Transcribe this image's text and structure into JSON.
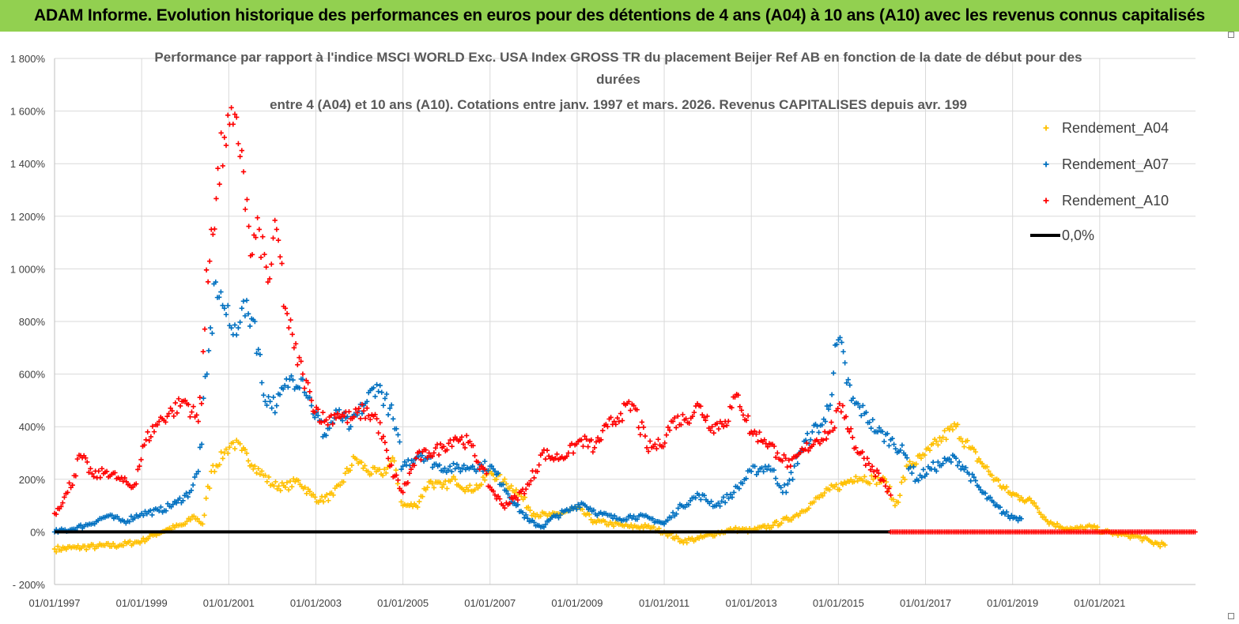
{
  "banner": {
    "text": "ADAM Informe. Evolution historique des performances en euros pour des détentions de 4 ans (A04) à 10 ans (A10) avec les revenus connus capitalisés"
  },
  "chart_data": {
    "type": "scatter",
    "title_lines": [
      "Performance par rapport à l'indice MSCI WORLD Exc. USA Index GROSS TR  du placement Beijer Ref AB en fonction de la date de début pour des",
      "durées",
      "entre 4 (A04) et 10 ans (A10). Cotations entre janv. 1997 et mars. 2026. Revenus CAPITALISES depuis avr. 199"
    ],
    "xlabel": "",
    "ylabel": "",
    "xlim": [
      1997.0,
      2023.2
    ],
    "ylim": [
      -200,
      1800
    ],
    "y_ticks": [
      -200,
      0,
      200,
      400,
      600,
      800,
      1000,
      1200,
      1400,
      1600,
      1800
    ],
    "y_tick_labels": [
      "- 200%",
      "0%",
      "200%",
      "400%",
      "600%",
      "800%",
      "1 000%",
      "1 200%",
      "1 400%",
      "1 600%",
      "1 800%"
    ],
    "x_ticks": [
      1997,
      1999,
      2001,
      2003,
      2005,
      2007,
      2009,
      2011,
      2013,
      2015,
      2017,
      2019,
      2021
    ],
    "x_tick_labels": [
      "01/01/1997",
      "01/01/1999",
      "01/01/2001",
      "01/01/2003",
      "01/01/2005",
      "01/01/2007",
      "01/01/2009",
      "01/01/2011",
      "01/01/2013",
      "01/01/2015",
      "01/01/2017",
      "01/01/2019",
      "01/01/2021"
    ],
    "grid": true,
    "legend_position": "top-right",
    "series": [
      {
        "name": "Rendement_A04",
        "color": "#ffc000",
        "marker": "+",
        "x": [
          1997.0,
          1997.5,
          1998.0,
          1998.5,
          1999.0,
          1999.3,
          1999.6,
          2000.0,
          2000.2,
          2000.4,
          2000.6,
          2000.9,
          2001.1,
          2001.3,
          2001.6,
          2002.0,
          2002.3,
          2002.6,
          2002.9,
          2003.1,
          2003.4,
          2003.6,
          2003.9,
          2004.2,
          2004.5,
          2004.8,
          2005.0,
          2005.3,
          2005.6,
          2005.9,
          2006.2,
          2006.5,
          2006.8,
          2007.0,
          2007.3,
          2007.6,
          2008.0,
          2008.4,
          2008.8,
          2009.0,
          2009.4,
          2009.8,
          2010.2,
          2010.6,
          2011.0,
          2011.4,
          2011.8,
          2012.2,
          2012.6,
          2013.0,
          2013.5,
          2014.0,
          2014.4,
          2014.8,
          2015.1,
          2015.4,
          2015.8,
          2016.1,
          2016.3,
          2016.6,
          2016.9,
          2017.1,
          2017.4,
          2017.7,
          2018.0,
          2018.3,
          2018.6,
          2018.9,
          2019.2,
          2019.5,
          2019.8,
          2020.1,
          2020.4,
          2020.8,
          2021.1,
          2021.5,
          2021.9,
          2022.2,
          2022.5
        ],
        "y": [
          -65,
          -60,
          -55,
          -50,
          -35,
          -10,
          10,
          30,
          60,
          30,
          230,
          300,
          340,
          310,
          250,
          180,
          170,
          195,
          140,
          120,
          140,
          190,
          280,
          230,
          220,
          270,
          100,
          100,
          190,
          170,
          200,
          160,
          180,
          230,
          190,
          160,
          70,
          60,
          80,
          90,
          40,
          30,
          20,
          20,
          0,
          -35,
          -25,
          -5,
          10,
          5,
          25,
          60,
          110,
          160,
          180,
          210,
          200,
          190,
          100,
          250,
          280,
          310,
          360,
          400,
          320,
          260,
          200,
          150,
          130,
          110,
          40,
          20,
          10,
          20,
          0,
          -10,
          -20,
          -40,
          -50
        ]
      },
      {
        "name": "Rendement_A07",
        "color": "#0070c0",
        "marker": "+",
        "x": [
          1997.0,
          1997.4,
          1997.8,
          1998.2,
          1998.6,
          1999.0,
          1999.4,
          1999.8,
          2000.1,
          2000.3,
          2000.5,
          2000.7,
          2000.9,
          2001.1,
          2001.3,
          2001.6,
          2001.8,
          2002.1,
          2002.4,
          2002.7,
          2002.9,
          2003.2,
          2003.5,
          2003.8,
          2004.1,
          2004.4,
          2004.7,
          2005.0,
          2005.4,
          2005.8,
          2006.2,
          2006.6,
          2007.0,
          2007.3,
          2007.6,
          2007.9,
          2008.2,
          2008.5,
          2008.8,
          2009.1,
          2009.5,
          2009.9,
          2010.3,
          2010.7,
          2011.0,
          2011.4,
          2011.8,
          2012.2,
          2012.6,
          2013.0,
          2013.4,
          2013.8,
          2014.1,
          2014.4,
          2014.7,
          2015.0,
          2015.3,
          2015.6,
          2015.9,
          2016.2,
          2016.5,
          2016.8,
          2017.1,
          2017.4,
          2017.7,
          2018.0,
          2018.3,
          2018.6,
          2018.9,
          2019.2
        ],
        "y": [
          0,
          10,
          30,
          60,
          40,
          70,
          80,
          110,
          150,
          230,
          600,
          950,
          850,
          750,
          850,
          800,
          520,
          480,
          580,
          580,
          480,
          370,
          450,
          400,
          480,
          560,
          470,
          250,
          300,
          250,
          240,
          250,
          250,
          180,
          100,
          40,
          20,
          60,
          80,
          110,
          70,
          50,
          60,
          50,
          30,
          100,
          140,
          100,
          150,
          230,
          250,
          150,
          300,
          380,
          420,
          730,
          500,
          450,
          380,
          350,
          300,
          200,
          240,
          260,
          280,
          220,
          150,
          100,
          60,
          50
        ]
      },
      {
        "name": "Rendement_A10",
        "color": "#ff0000",
        "marker": "+",
        "x": [
          1997.0,
          1997.3,
          1997.6,
          1997.9,
          1998.2,
          1998.5,
          1998.8,
          1999.1,
          1999.4,
          1999.7,
          2000.0,
          2000.3,
          2000.6,
          2000.9,
          2001.1,
          2001.3,
          2001.5,
          2001.7,
          2001.9,
          2002.1,
          2002.3,
          2002.5,
          2002.7,
          2002.9,
          2003.2,
          2003.5,
          2003.8,
          2004.1,
          2004.4,
          2004.7,
          2005.0,
          2005.3,
          2005.6,
          2005.9,
          2006.2,
          2006.5,
          2006.8,
          2007.0,
          2007.3,
          2007.6,
          2007.9,
          2008.2,
          2008.5,
          2008.8,
          2009.1,
          2009.4,
          2009.7,
          2010.0,
          2010.3,
          2010.6,
          2010.9,
          2011.2,
          2011.5,
          2011.8,
          2012.1,
          2012.4,
          2012.7,
          2013.0,
          2013.3,
          2013.6,
          2013.9,
          2014.2,
          2014.5,
          2014.8,
          2015.1,
          2015.4,
          2015.7,
          2016.0,
          2016.2
        ],
        "y": [
          70,
          150,
          290,
          210,
          230,
          200,
          170,
          350,
          420,
          460,
          500,
          420,
          1150,
          1500,
          1550,
          1450,
          1050,
          1150,
          950,
          1150,
          850,
          700,
          600,
          500,
          420,
          450,
          430,
          460,
          430,
          250,
          150,
          280,
          300,
          320,
          360,
          340,
          250,
          170,
          100,
          130,
          180,
          300,
          280,
          300,
          350,
          320,
          400,
          450,
          480,
          320,
          330,
          420,
          430,
          480,
          400,
          420,
          520,
          380,
          350,
          300,
          250,
          310,
          350,
          380,
          480,
          320,
          260,
          200,
          140
        ]
      },
      {
        "name": "0,0%",
        "color": "#000000",
        "marker": "line",
        "x": [
          1997.0,
          2016.2
        ],
        "y": [
          0,
          0
        ]
      }
    ],
    "zero_markers_red": {
      "x_start": 2016.2,
      "x_end": 2023.2,
      "y": 0,
      "color": "#ff0000"
    }
  }
}
